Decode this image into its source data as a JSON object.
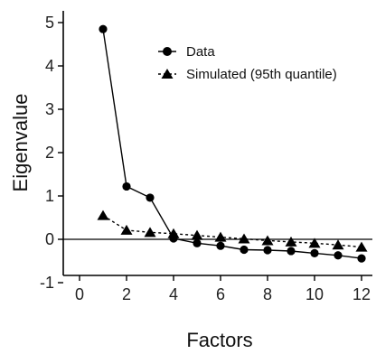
{
  "chart_data": {
    "type": "line",
    "title": "",
    "xlabel": "Factors",
    "ylabel": "Eigenvalue",
    "xlim": [
      -0.5,
      12.3
    ],
    "ylim": [
      -1.3,
      5.3
    ],
    "xticks": [
      0,
      2,
      4,
      6,
      8,
      10,
      12
    ],
    "yticks": [
      -1,
      0,
      1,
      2,
      3,
      4,
      5
    ],
    "reference_line_y": 0,
    "grid": false,
    "legend_position": "top-right",
    "series": [
      {
        "name": "Data",
        "marker": "circle",
        "line": "solid",
        "color": "#000000",
        "x": [
          1,
          2,
          3,
          4,
          5,
          6,
          7,
          8,
          9,
          10,
          11,
          12
        ],
        "y": [
          4.85,
          1.22,
          0.96,
          0.02,
          -0.09,
          -0.15,
          -0.24,
          -0.25,
          -0.27,
          -0.32,
          -0.37,
          -0.44
        ]
      },
      {
        "name": "Simulated (95th quantile)",
        "marker": "triangle",
        "line": "dashed",
        "color": "#000000",
        "x": [
          1,
          2,
          3,
          4,
          5,
          6,
          7,
          8,
          9,
          10,
          11,
          12
        ],
        "y": [
          0.55,
          0.21,
          0.16,
          0.13,
          0.09,
          0.05,
          0.01,
          -0.03,
          -0.06,
          -0.09,
          -0.13,
          -0.18
        ]
      }
    ]
  }
}
